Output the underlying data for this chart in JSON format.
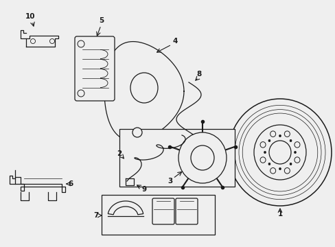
{
  "bg_color": "#efefef",
  "line_color": "#1a1a1a",
  "lw": 0.9,
  "figsize": [
    4.89,
    3.6
  ],
  "dpi": 100
}
